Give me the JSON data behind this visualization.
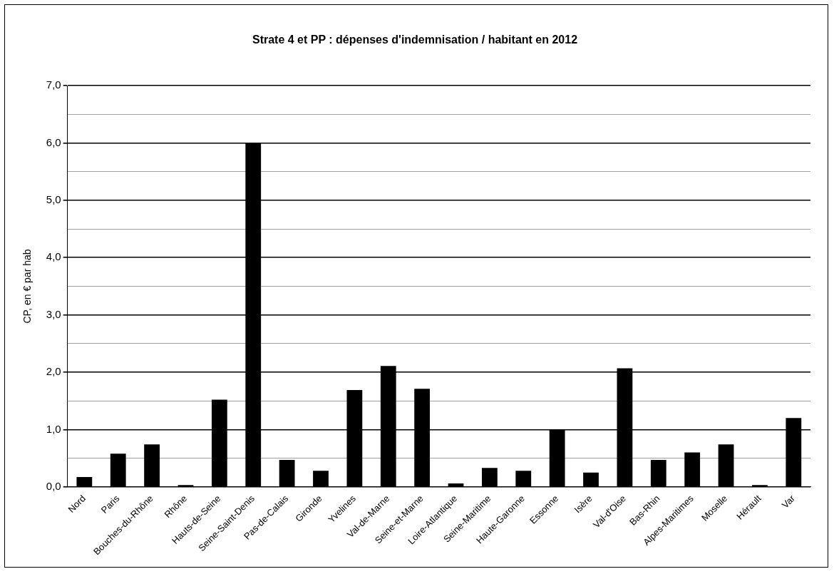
{
  "chart_data": {
    "type": "bar",
    "title": "Strate 4 et PP : dépenses d'indemnisation / habitant en 2012",
    "ylabel": "CP, en € par hab",
    "categories": [
      "Nord",
      "Paris",
      "Bouches-du-Rhône",
      "Rhône",
      "Hauts-de-Seine",
      "Seine-Saint-Denis",
      "Pas-de-Calais",
      "Gironde",
      "Yvelines",
      "Val-de-Marne",
      "Seine-et-Marne",
      "Loire-Atlantique",
      "Seine-Maritime",
      "Haute-Garonne",
      "Essonne",
      "Isère",
      "Val-d'Oise",
      "Bas-Rhin",
      "Alpes-Maritimes",
      "Moselle",
      "Hérault",
      "Var"
    ],
    "values": [
      0.17,
      0.58,
      0.74,
      0.03,
      1.52,
      6.0,
      0.47,
      0.28,
      1.69,
      2.11,
      1.71,
      0.06,
      0.33,
      0.28,
      1.0,
      0.25,
      2.07,
      0.47,
      0.6,
      0.74,
      0.03,
      1.2
    ],
    "color": "#000000",
    "ylim": [
      0,
      7
    ],
    "yticks": [
      {
        "value": 0,
        "label": "0,0"
      },
      {
        "value": 0.5,
        "label": null
      },
      {
        "value": 1,
        "label": "1,0"
      },
      {
        "value": 1.5,
        "label": null
      },
      {
        "value": 2,
        "label": "2,0"
      },
      {
        "value": 2.5,
        "label": null
      },
      {
        "value": 3,
        "label": "3,0"
      },
      {
        "value": 3.5,
        "label": null
      },
      {
        "value": 4,
        "label": "4,0"
      },
      {
        "value": 4.5,
        "label": null
      },
      {
        "value": 5,
        "label": "5,0"
      },
      {
        "value": 5.5,
        "label": null
      },
      {
        "value": 6,
        "label": "6,0"
      },
      {
        "value": 6.5,
        "label": null
      },
      {
        "value": 7,
        "label": "7,0"
      }
    ],
    "grid": "y",
    "legend": false
  }
}
